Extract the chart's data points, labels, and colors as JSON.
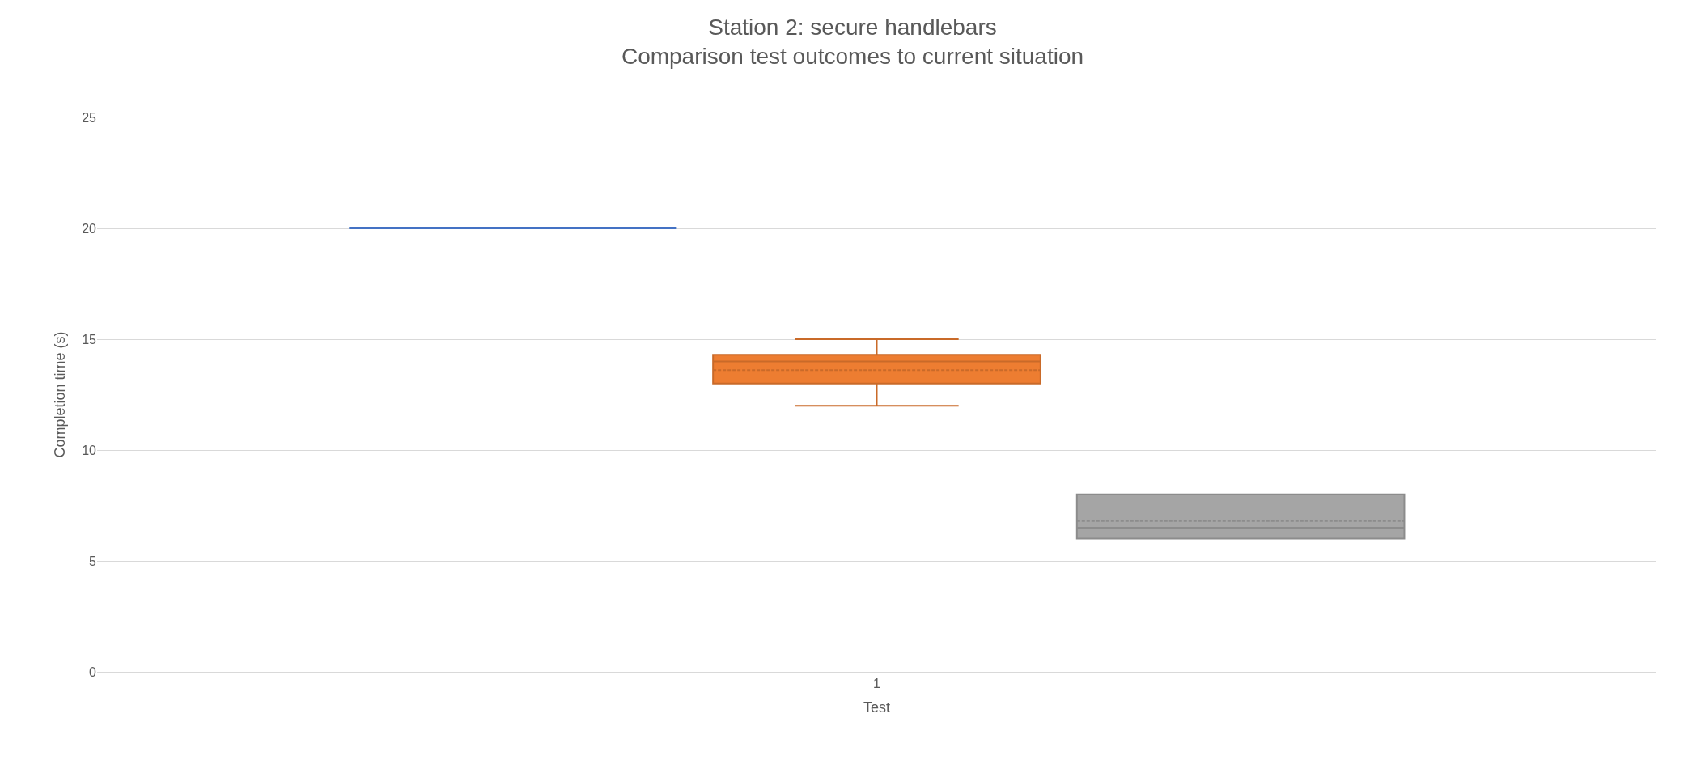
{
  "chart_data": {
    "type": "box",
    "title": "Station 2: secure handlebars",
    "subtitle": "Comparison test outcomes to current situation",
    "xlabel": "Test",
    "ylabel": "Completion time (s)",
    "categories": [
      "1"
    ],
    "series": [
      {
        "color": "#4472c4",
        "boxes": [
          {
            "low": 20,
            "q1": 20,
            "median": 20,
            "q3": 20,
            "high": 20,
            "mean": 20
          }
        ]
      },
      {
        "color": "#ed7d31",
        "boxes": [
          {
            "low": 12,
            "q1": 13,
            "median": 14,
            "q3": 14.3,
            "high": 15,
            "mean": 13.6
          }
        ]
      },
      {
        "color": "#a5a5a5",
        "boxes": [
          {
            "low": 6,
            "q1": 6,
            "median": 6.5,
            "q3": 8,
            "high": 8,
            "mean": 6.8
          }
        ]
      }
    ],
    "ylim": [
      0,
      25
    ],
    "yticks": [
      0,
      5,
      10,
      15,
      20,
      25
    ],
    "grid": "y"
  }
}
